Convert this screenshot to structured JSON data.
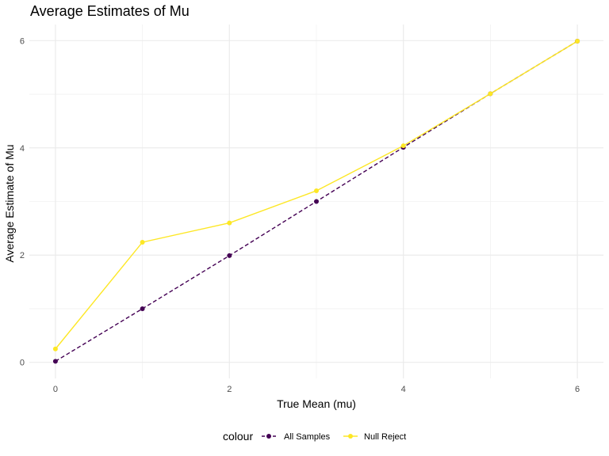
{
  "chart_data": {
    "type": "line",
    "title": "Average Estimates of Mu",
    "xlabel": "True Mean (mu)",
    "ylabel": "Average Estimate of Mu",
    "xlim": [
      -0.3,
      6.3
    ],
    "ylim": [
      -0.3,
      6.3
    ],
    "xticks": [
      0,
      2,
      4,
      6
    ],
    "yticks": [
      0,
      2,
      4,
      6
    ],
    "x_minor_ticks": [
      1,
      3,
      5
    ],
    "y_minor_ticks": [
      1,
      3,
      5
    ],
    "grid": true,
    "legend_title": "colour",
    "legend_position": "bottom",
    "x": [
      0,
      1,
      2,
      3,
      4,
      5,
      6
    ],
    "series": [
      {
        "name": "All Samples",
        "values": [
          0.02,
          1.0,
          1.99,
          3.0,
          4.01,
          5.01,
          5.99
        ],
        "color": "#440154",
        "line_style": "dashed"
      },
      {
        "name": "Null Reject",
        "values": [
          0.25,
          2.24,
          2.6,
          3.2,
          4.04,
          5.01,
          5.99
        ],
        "color": "#FDE725",
        "line_style": "solid"
      }
    ]
  }
}
